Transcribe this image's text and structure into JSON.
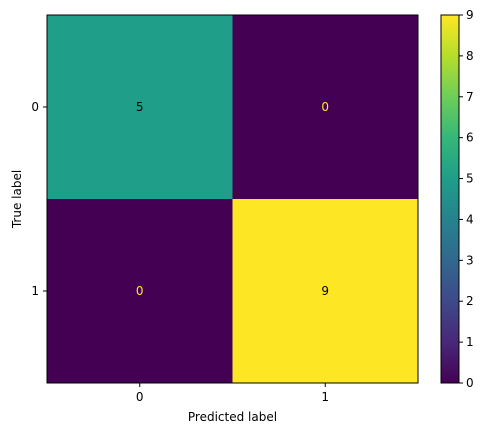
{
  "chart_data": {
    "type": "heatmap",
    "title": "",
    "xlabel": "Predicted label",
    "ylabel": "True label",
    "x_categories": [
      "0",
      "1"
    ],
    "y_categories": [
      "0",
      "1"
    ],
    "values": [
      [
        5,
        0
      ],
      [
        0,
        9
      ]
    ],
    "colormap": "viridis",
    "vmin": 0,
    "vmax": 9,
    "colorbar_ticks": [
      "0",
      "1",
      "2",
      "3",
      "4",
      "5",
      "6",
      "7",
      "8",
      "9"
    ],
    "grid": false,
    "colors": {
      "low": "#440154",
      "mid": "#21918c",
      "high": "#fde725",
      "text_on_dark": "#fde725",
      "text_on_light": "#000000"
    }
  }
}
